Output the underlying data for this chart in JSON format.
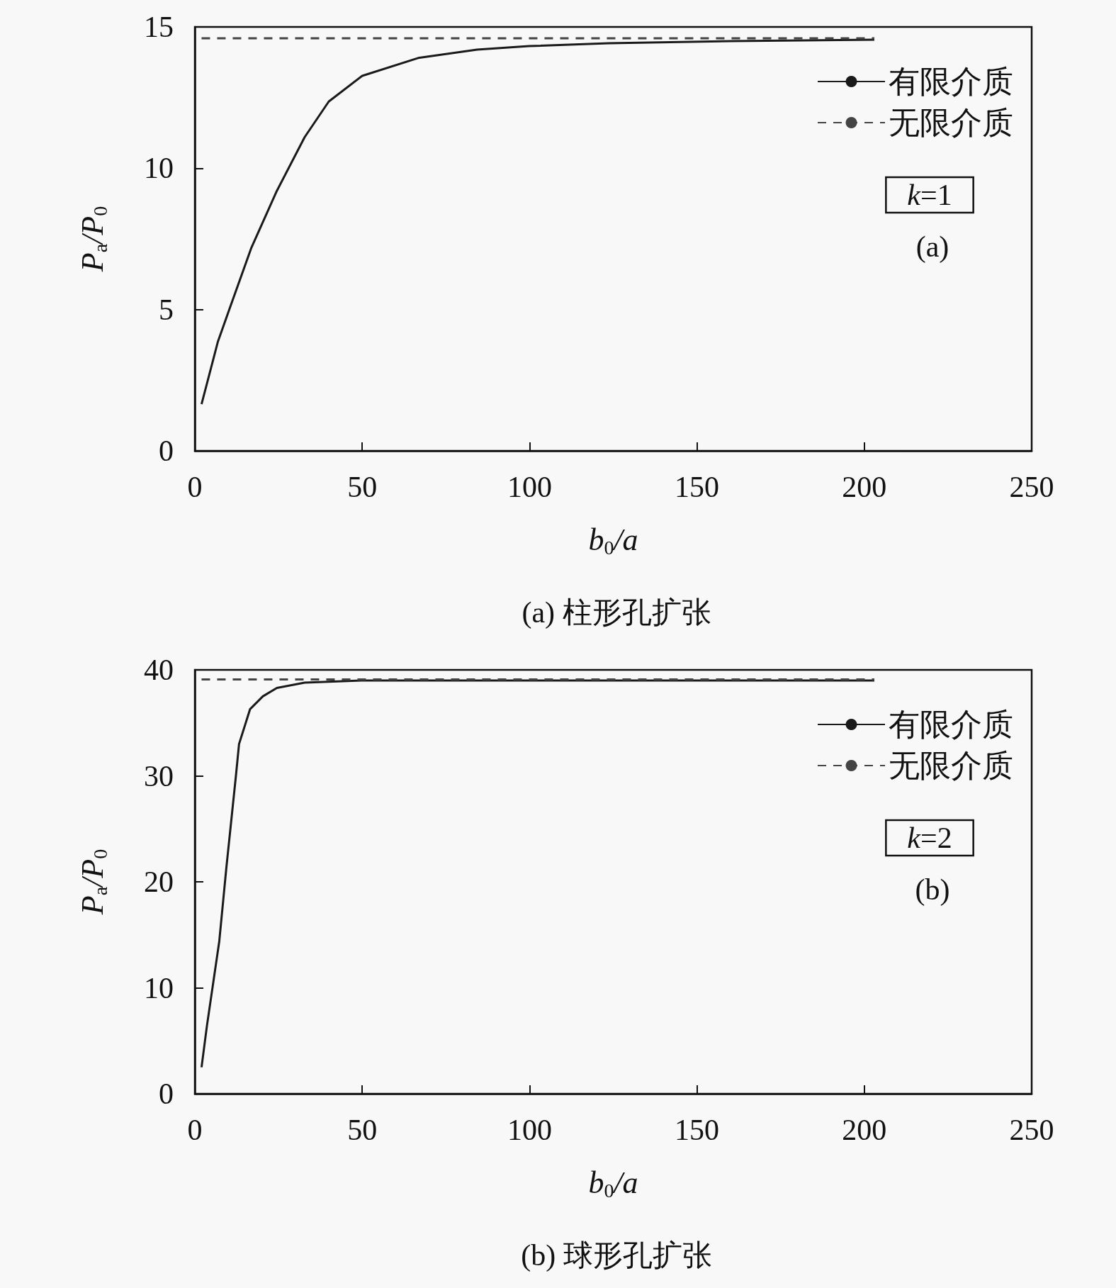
{
  "chart_data": [
    {
      "type": "line",
      "xlabel": "b$_{0}$/a",
      "ylabel": "P$_{a}$/P$_{0}$",
      "xlim": [
        0,
        250
      ],
      "xticks": [
        0,
        50,
        100,
        150,
        200,
        250
      ],
      "ylim": [
        0,
        15
      ],
      "yticks": [
        0,
        5,
        10,
        15
      ],
      "grid": false,
      "legend": "top right",
      "marker": "none",
      "annotations": [
        "k=1",
        "(a)",
        "(a) 柱形孔扩张"
      ],
      "series": [
        {
          "name": "有限介质",
          "color": "#1a1a1a",
          "line_style": "solid",
          "x": [
            2,
            6.9,
            10.2,
            16.9,
            24.5,
            32.8,
            40,
            50,
            66.7,
            84.3,
            99.8,
            123.6,
            160,
            203
          ],
          "values": [
            1.65,
            3.87,
            4.97,
            7.19,
            9.2,
            11.1,
            12.36,
            13.27,
            13.9,
            14.2,
            14.32,
            14.42,
            14.5,
            14.55
          ]
        },
        {
          "name": "无限介质",
          "color": "#444444",
          "line_style": "dashed",
          "x": [
            2,
            203
          ],
          "values": [
            14.6,
            14.6
          ]
        }
      ]
    },
    {
      "type": "line",
      "xlabel": "b$_{0}$/a",
      "ylabel": "P$_{a}$/P$_{0}$",
      "xlim": [
        0,
        250
      ],
      "xticks": [
        0,
        50,
        100,
        150,
        200,
        250
      ],
      "ylim": [
        0,
        40
      ],
      "yticks": [
        0,
        10,
        20,
        30,
        40
      ],
      "grid": false,
      "legend": "top right",
      "marker": "none",
      "annotations": [
        "k=2",
        "(b)",
        "(b) 球形孔扩张"
      ],
      "series": [
        {
          "name": "有限介质",
          "color": "#1a1a1a",
          "line_style": "solid",
          "x": [
            2,
            3.6,
            7.3,
            9.4,
            12.3,
            13.2,
            16.5,
            20.3,
            24.5,
            32.8,
            50,
            100,
            203
          ],
          "values": [
            2.5,
            6.4,
            14.4,
            21.3,
            30.1,
            33.0,
            36.3,
            37.5,
            38.3,
            38.8,
            39.0,
            39.0,
            39.0
          ]
        },
        {
          "name": "无限介质",
          "color": "#444444",
          "line_style": "dashed",
          "x": [
            2,
            203
          ],
          "values": [
            39.1,
            39.1
          ]
        }
      ]
    }
  ]
}
